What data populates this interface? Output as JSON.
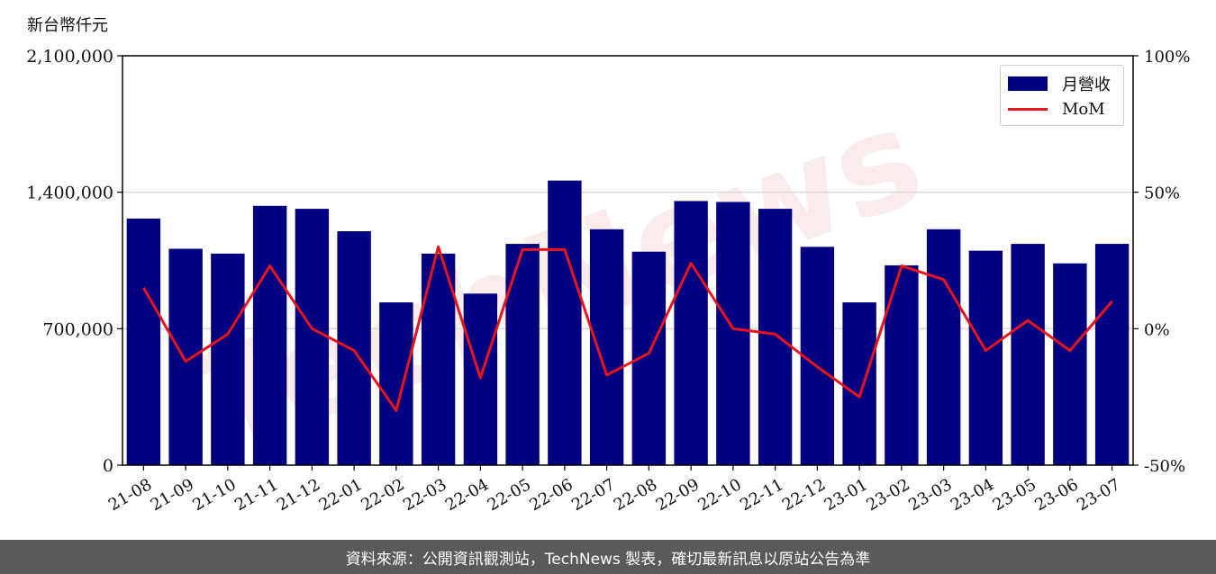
{
  "unit_label": "新台幣仟元",
  "footer_text": "資料來源：公開資訊觀測站，TechNews 製表，確切最新訊息以原站公告為準",
  "watermark": "TechNews",
  "colors": {
    "bar": "#000080",
    "line": "#e8141c",
    "grid": "#d9d9d9",
    "footer_bg": "#5a5a5a"
  },
  "legend": {
    "bar_label": "月營收",
    "line_label": "MoM",
    "position": "top-right"
  },
  "chart_data": {
    "type": "bar",
    "categories": [
      "21-08",
      "21-09",
      "21-10",
      "21-11",
      "21-12",
      "22-01",
      "22-02",
      "22-03",
      "22-04",
      "22-05",
      "22-06",
      "22-07",
      "22-08",
      "22-09",
      "22-10",
      "22-11",
      "22-12",
      "23-01",
      "23-02",
      "23-03",
      "23-04",
      "23-05",
      "23-06",
      "23-07"
    ],
    "series": [
      {
        "name": "月營收",
        "type": "bar",
        "axis": "left",
        "values": [
          1265000,
          1110000,
          1085000,
          1330000,
          1315000,
          1200000,
          835000,
          1085000,
          880000,
          1135000,
          1460000,
          1210000,
          1095000,
          1355000,
          1350000,
          1315000,
          1120000,
          835000,
          1025000,
          1210000,
          1100000,
          1135000,
          1035000,
          1135000
        ]
      },
      {
        "name": "MoM",
        "type": "line",
        "axis": "right",
        "unit": "%",
        "values": [
          15,
          -12,
          -2,
          23,
          0,
          -8,
          -30,
          30,
          -18,
          29,
          29,
          -17,
          -9,
          24,
          0,
          -2,
          -14,
          -25,
          23,
          18,
          -8,
          3,
          -8,
          10
        ]
      }
    ],
    "y_left": {
      "label": "新台幣仟元",
      "lim": [
        0,
        2100000
      ],
      "ticks": [
        "0",
        "700,000",
        "1,400,000",
        "2,100,000"
      ],
      "tick_values": [
        0,
        700000,
        1400000,
        2100000
      ]
    },
    "y_right": {
      "lim": [
        -50,
        100
      ],
      "ticks": [
        "-50%",
        "0%",
        "50%",
        "100%"
      ],
      "tick_values": [
        -50,
        0,
        50,
        100
      ]
    },
    "grid": "horizontal"
  }
}
